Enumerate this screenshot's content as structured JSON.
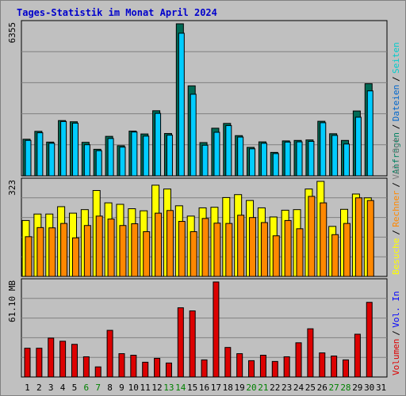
{
  "title": "Tages-Statistik im Monat April 2024",
  "colors": {
    "anfragen": "#006699",
    "dateien": "#00ccff",
    "seiten": "#00ffff",
    "besuche": "#ffff00",
    "rechner": "#ff8800",
    "volumen": "#dd0000",
    "panel_bg": "#c0c0c0",
    "grid": "#808080",
    "weekend_label": "#008000",
    "weekday_label": "#000000"
  },
  "chart_data": [
    {
      "type": "bar",
      "id": "hits",
      "max_label": "6355",
      "ylim": [
        0,
        6355
      ],
      "grid": true,
      "legend": [
        {
          "label": "Anfragen",
          "color": "#008060"
        },
        {
          "label": "Dateien",
          "color": "#0066cc"
        },
        {
          "label": "Seiten",
          "color": "#00cccc"
        }
      ],
      "categories": [
        "1",
        "2",
        "3",
        "4",
        "5",
        "6",
        "7",
        "8",
        "9",
        "10",
        "11",
        "12",
        "13",
        "14",
        "15",
        "16",
        "17",
        "18",
        "19",
        "20",
        "21",
        "22",
        "23",
        "24",
        "25",
        "26",
        "27",
        "28",
        "29",
        "30",
        "31"
      ],
      "series": [
        {
          "name": "Anfragen",
          "values": [
            1530,
            1860,
            1410,
            2310,
            2260,
            1400,
            1110,
            1650,
            1260,
            1870,
            1750,
            2720,
            1770,
            6355,
            3760,
            1390,
            1990,
            2190,
            1680,
            1190,
            1420,
            980,
            1460,
            1480,
            1500,
            2280,
            1760,
            1480,
            2710,
            3850,
            null
          ]
        },
        {
          "name": "Dateien",
          "values": [
            1480,
            1800,
            1360,
            2270,
            2200,
            1300,
            1050,
            1560,
            1200,
            1830,
            1660,
            2610,
            1700,
            5960,
            3410,
            1280,
            1820,
            2100,
            1620,
            1130,
            1360,
            930,
            1410,
            1420,
            1440,
            2220,
            1690,
            1330,
            2450,
            3550,
            null
          ]
        }
      ]
    },
    {
      "type": "bar",
      "id": "visits",
      "max_label": "323",
      "ylim": [
        0,
        323
      ],
      "grid": true,
      "legend": [
        {
          "label": "Besuche",
          "color": "#ffff00"
        },
        {
          "label": "Rechner",
          "color": "#ff8800"
        },
        {
          "label": "Vol. Out",
          "color": "#808080"
        }
      ],
      "categories": [
        "1",
        "2",
        "3",
        "4",
        "5",
        "6",
        "7",
        "8",
        "9",
        "10",
        "11",
        "12",
        "13",
        "14",
        "15",
        "16",
        "17",
        "18",
        "19",
        "20",
        "21",
        "22",
        "23",
        "24",
        "25",
        "26",
        "27",
        "28",
        "29",
        "30",
        "31"
      ],
      "series": [
        {
          "name": "Besuche",
          "values": [
            190,
            212,
            212,
            237,
            215,
            227,
            292,
            250,
            245,
            230,
            223,
            310,
            297,
            240,
            205,
            233,
            235,
            268,
            278,
            258,
            233,
            202,
            225,
            227,
            297,
            323,
            170,
            228,
            280,
            267,
            null
          ]
        },
        {
          "name": "Rechner",
          "values": [
            135,
            166,
            165,
            180,
            131,
            173,
            205,
            195,
            173,
            179,
            152,
            215,
            224,
            187,
            152,
            197,
            181,
            180,
            208,
            200,
            183,
            138,
            190,
            162,
            272,
            250,
            142,
            180,
            267,
            258,
            null
          ]
        }
      ]
    },
    {
      "type": "bar",
      "id": "volume",
      "max_label": "61.10 MB",
      "ylim": [
        0,
        61.1
      ],
      "grid": true,
      "legend": [
        {
          "label": "Volumen",
          "color": "#dd0000"
        },
        {
          "label": "Vol. In",
          "color": "#0000ff"
        }
      ],
      "categories": [
        "1",
        "2",
        "3",
        "4",
        "5",
        "6",
        "7",
        "8",
        "9",
        "10",
        "11",
        "12",
        "13",
        "14",
        "15",
        "16",
        "17",
        "18",
        "19",
        "20",
        "21",
        "22",
        "23",
        "24",
        "25",
        "26",
        "27",
        "28",
        "29",
        "30",
        "31"
      ],
      "series": [
        {
          "name": "Volumen",
          "values": [
            18.5,
            18.5,
            25.0,
            23.0,
            21.0,
            13.0,
            6.5,
            30.0,
            15.0,
            14.0,
            9.5,
            12.0,
            9.0,
            44.5,
            42.5,
            11.0,
            61.1,
            19.0,
            15.0,
            10.5,
            14.0,
            10.0,
            13.0,
            22.0,
            31.0,
            15.5,
            13.5,
            11.0,
            27.5,
            48.0,
            null
          ]
        }
      ]
    }
  ]
}
